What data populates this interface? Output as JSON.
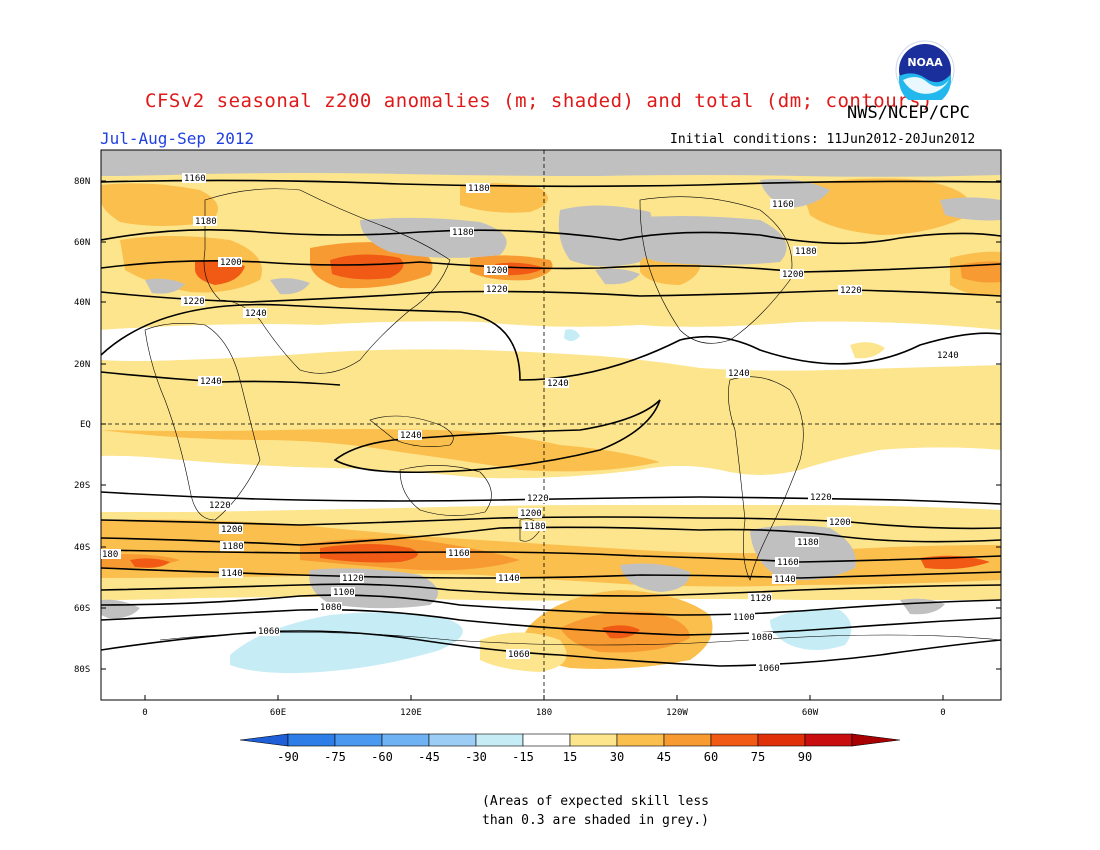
{
  "title": "CFSv2 seasonal z200 anomalies (m; shaded) and total (dm; contours)",
  "agency": "NWS/NCEP/CPC",
  "logo_text": "NOAA",
  "period": "Jul-Aug-Sep 2012",
  "initial_conditions": "Initial conditions: 11Jun2012-20Jun2012",
  "lat_labels": [
    "80N",
    "60N",
    "40N",
    "20N",
    "EQ",
    "20S",
    "40S",
    "60S",
    "80S"
  ],
  "lon_labels": [
    "0",
    "60E",
    "120E",
    "180",
    "120W",
    "60W",
    "0"
  ],
  "colorbar": {
    "labels": [
      "-90",
      "-75",
      "-60",
      "-45",
      "-30",
      "-15",
      "15",
      "30",
      "45",
      "60",
      "75",
      "90"
    ],
    "colors": [
      "#1e5fd8",
      "#2f7ee8",
      "#4a98ef",
      "#6fb2f3",
      "#9ccdf5",
      "#c6ecf5",
      "#ffffff",
      "#fde58e",
      "#fbbf4d",
      "#f79a31",
      "#f05a14",
      "#e0300a",
      "#c80e0e",
      "#a80000"
    ]
  },
  "contour_labels": [
    {
      "text": "1160"
    },
    {
      "text": "1180"
    },
    {
      "text": "1180"
    },
    {
      "text": "1160"
    },
    {
      "text": "1180"
    },
    {
      "text": "1180"
    },
    {
      "text": "1200"
    },
    {
      "text": "1200"
    },
    {
      "text": "1200"
    },
    {
      "text": "1220"
    },
    {
      "text": "1220"
    },
    {
      "text": "1220"
    },
    {
      "text": "1240"
    },
    {
      "text": "1240"
    },
    {
      "text": "1240"
    },
    {
      "text": "1240"
    },
    {
      "text": "1240"
    },
    {
      "text": "1240"
    },
    {
      "text": "1220"
    },
    {
      "text": "1220"
    },
    {
      "text": "1220"
    },
    {
      "text": "1200"
    },
    {
      "text": "1200"
    },
    {
      "text": "1200"
    },
    {
      "text": "1180"
    },
    {
      "text": "1180"
    },
    {
      "text": "1180"
    },
    {
      "text": "1160"
    },
    {
      "text": "1160"
    },
    {
      "text": "1140"
    },
    {
      "text": "1140"
    },
    {
      "text": "1140"
    },
    {
      "text": "1120"
    },
    {
      "text": "1120"
    },
    {
      "text": "1100"
    },
    {
      "text": "1100"
    },
    {
      "text": "1080"
    },
    {
      "text": "1080"
    },
    {
      "text": "1060"
    },
    {
      "text": "1060"
    },
    {
      "text": "1060"
    },
    {
      "text": "180"
    }
  ],
  "note_line1": "(Areas of expected skill less",
  "note_line2": "than 0.3 are shaded in grey.)"
}
